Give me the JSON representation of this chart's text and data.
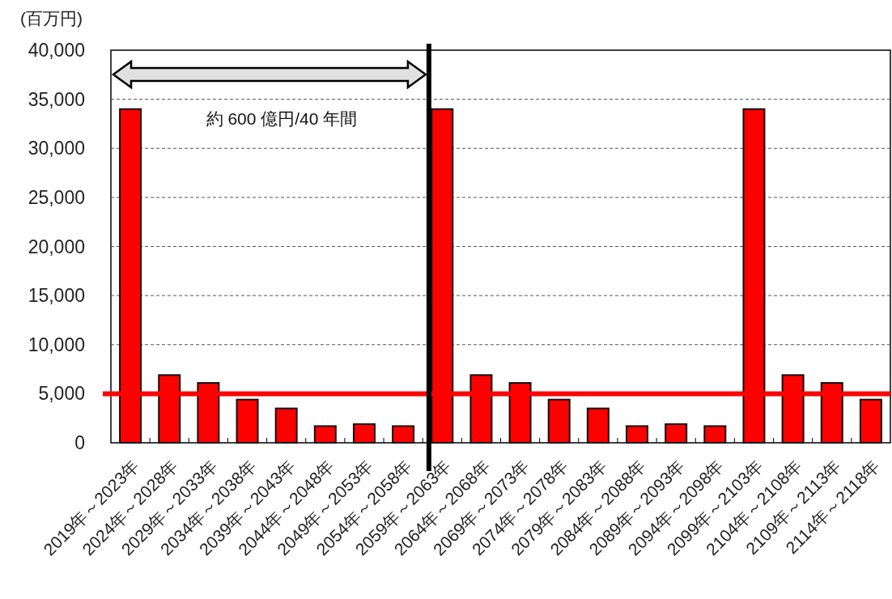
{
  "chart_data": {
    "type": "bar",
    "ylabel": "(百万円)",
    "categories": [
      "2019年～2023年",
      "2024年～2028年",
      "2029年～2033年",
      "2034年～2038年",
      "2039年～2043年",
      "2044年～2048年",
      "2049年～2053年",
      "2054年～2058年",
      "2059年～2063年",
      "2064年～2068年",
      "2069年～2073年",
      "2074年～2078年",
      "2079年～2083年",
      "2084年～2088年",
      "2089年～2093年",
      "2094年～2098年",
      "2099年～2103年",
      "2104年～2108年",
      "2109年～2113年",
      "2114年～2118年"
    ],
    "values": [
      34000,
      6900,
      6100,
      4400,
      3500,
      1700,
      1900,
      1700,
      34000,
      6900,
      6100,
      4400,
      3500,
      1700,
      1900,
      1700,
      34000,
      6900,
      6100,
      4400
    ],
    "color": "#ff0000",
    "ylim": [
      0,
      40000
    ],
    "yticks": [
      {
        "value": 0,
        "label": "0"
      },
      {
        "value": 5000,
        "label": "5,000"
      },
      {
        "value": 10000,
        "label": "10,000"
      },
      {
        "value": 15000,
        "label": "15,000"
      },
      {
        "value": 20000,
        "label": "20,000"
      },
      {
        "value": 25000,
        "label": "25,000"
      },
      {
        "value": 30000,
        "label": "30,000"
      },
      {
        "value": 35000,
        "label": "35,000"
      },
      {
        "value": 40000,
        "label": "40,000"
      }
    ],
    "grid": "y",
    "ref_lines": [
      {
        "axis": "y",
        "value": 5000,
        "color": "#ff0000"
      },
      {
        "axis": "x",
        "value": "2059年～2063年",
        "color": "#000000"
      }
    ],
    "annotations": [
      "約 600 億円/40 年間"
    ]
  }
}
